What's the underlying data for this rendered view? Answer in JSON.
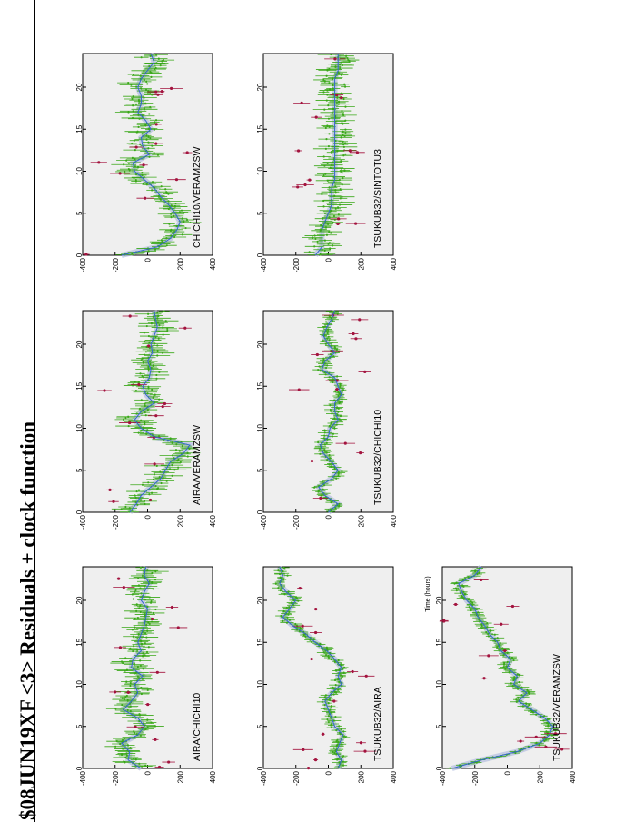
{
  "page": {
    "title": "$08JUN19XF <3> Residuals + clock function"
  },
  "colors": {
    "panel_bg": "#efefef",
    "good_points": "#3aa818",
    "flagged_points": "#a3133e",
    "clock_fit": "#3366cc",
    "fit_band": "#b3bde0"
  },
  "chart_data": [
    {
      "type": "scatter",
      "baseline": "AIRA/CHICHI10",
      "xlim": [
        0,
        24
      ],
      "ylim": [
        -400,
        400
      ],
      "xticks": [
        0,
        5,
        10,
        15,
        20
      ],
      "yticks": [
        400,
        200,
        0,
        -200,
        -400
      ],
      "xlabel": "",
      "shape": "noisy",
      "fit_values": [
        -40,
        -120,
        -110,
        -160,
        -60,
        -20,
        -60,
        -150,
        -100,
        -60,
        -80,
        -30,
        -100,
        -90,
        -40,
        -60,
        -40,
        -20,
        -10,
        0,
        -40,
        -20,
        10,
        -20,
        -10
      ]
    },
    {
      "type": "scatter",
      "baseline": "AIRA/VERAMZSW",
      "xlim": [
        0,
        24
      ],
      "ylim": [
        -400,
        400
      ],
      "xticks": [
        0,
        5,
        10,
        15,
        20
      ],
      "yticks": [
        400,
        200,
        0,
        -200,
        -400
      ],
      "xlabel": "",
      "shape": "noisy",
      "fit_values": [
        -110,
        -70,
        -40,
        20,
        80,
        110,
        140,
        220,
        260,
        40,
        -40,
        -80,
        -40,
        40,
        -10,
        -30,
        10,
        20,
        0,
        30,
        20,
        40,
        60,
        50,
        40
      ]
    },
    {
      "type": "scatter",
      "baseline": "CHICHI10/VERAMZSW",
      "xlim": [
        0,
        24
      ],
      "ylim": [
        -400,
        400
      ],
      "xticks": [
        0,
        5,
        10,
        15,
        20
      ],
      "yticks": [
        400,
        200,
        0,
        -200,
        -400
      ],
      "xlabel": "",
      "shape": "noisy",
      "fit_values": [
        -160,
        60,
        140,
        180,
        200,
        170,
        130,
        80,
        40,
        -20,
        -80,
        -90,
        10,
        -30,
        -40,
        20,
        -10,
        -60,
        -40,
        -40,
        -60,
        -40,
        0,
        40,
        20
      ]
    },
    {
      "type": "scatter",
      "baseline": "TSUKUB32/AIRA",
      "xlim": [
        0,
        24
      ],
      "ylim": [
        -400,
        400
      ],
      "xticks": [
        0,
        5,
        10,
        15,
        20
      ],
      "yticks": [
        400,
        200,
        0,
        -200,
        -400
      ],
      "xlabel": "",
      "shape": "smooth",
      "fit_values": [
        60,
        80,
        50,
        70,
        90,
        40,
        20,
        0,
        -20,
        20,
        80,
        60,
        80,
        40,
        -10,
        -80,
        -140,
        -220,
        -280,
        -240,
        -200,
        -260,
        -300,
        -280,
        -300
      ]
    },
    {
      "type": "scatter",
      "baseline": "TSUKUB32/CHICHI10",
      "xlim": [
        0,
        24
      ],
      "ylim": [
        -400,
        400
      ],
      "xticks": [
        0,
        5,
        10,
        15,
        20
      ],
      "yticks": [
        400,
        200,
        0,
        -200,
        -400
      ],
      "xlabel": "",
      "shape": "smooth",
      "fit_values": [
        0,
        60,
        -20,
        -60,
        20,
        60,
        20,
        -30,
        -50,
        0,
        10,
        60,
        40,
        40,
        80,
        60,
        40,
        -40,
        -20,
        40,
        0,
        -30,
        -10,
        20,
        40
      ]
    },
    {
      "type": "scatter",
      "baseline": "TSUKUB32/SINTOTU3",
      "xlim": [
        0,
        24
      ],
      "ylim": [
        -400,
        400
      ],
      "xticks": [
        0,
        5,
        10,
        15,
        20
      ],
      "yticks": [
        400,
        200,
        0,
        -200,
        -400
      ],
      "xlabel": "",
      "shape": "noisy",
      "fit_values": [
        -80,
        -40,
        -40,
        -40,
        -20,
        0,
        20,
        20,
        20,
        40,
        40,
        40,
        40,
        40,
        40,
        40,
        40,
        40,
        40,
        40,
        40,
        40,
        60,
        60,
        60
      ]
    },
    {
      "type": "scatter",
      "baseline": "TSUKUB32/VERAMZSW",
      "xlim": [
        0,
        24
      ],
      "ylim": [
        -400,
        400
      ],
      "xticks": [
        0,
        5,
        10,
        15,
        20
      ],
      "yticks": [
        400,
        200,
        0,
        -200,
        -400
      ],
      "xlabel": "Time (hours)",
      "shape": "smooth",
      "fit_values": [
        -340,
        -160,
        60,
        200,
        260,
        280,
        230,
        150,
        70,
        120,
        40,
        60,
        0,
        20,
        -40,
        -60,
        -110,
        -140,
        -180,
        -200,
        -250,
        -280,
        -300,
        -200,
        -160
      ]
    }
  ]
}
